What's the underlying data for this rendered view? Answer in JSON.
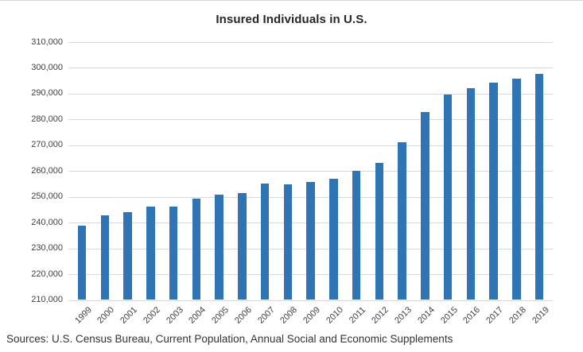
{
  "chart": {
    "title": "Insured Individuals in U.S.",
    "source_note": "Sources: U.S. Census Bureau, Current Population, Annual Social and Economic Supplements"
  },
  "colors": {
    "bar": "#2F75B5",
    "gridline": "#D9D9D9",
    "axis_text": "#404040",
    "title_text": "#262626",
    "source_text": "#333333",
    "top_border": "#D9D9D9"
  },
  "chart_data": {
    "type": "bar",
    "title": "Insured Individuals in U.S.",
    "categories": [
      "1999",
      "2000",
      "2001",
      "2002",
      "2003",
      "2004",
      "2005",
      "2006",
      "2007",
      "2008",
      "2009",
      "2010",
      "2011",
      "2012",
      "2013",
      "2014",
      "2015",
      "2016",
      "2017",
      "2018",
      "2019"
    ],
    "values": [
      238900,
      242900,
      244100,
      246200,
      246300,
      249300,
      250900,
      251600,
      255000,
      254700,
      255800,
      257000,
      260100,
      263200,
      271200,
      283000,
      289800,
      292000,
      294200,
      295700,
      297700
    ],
    "xlabel": "",
    "ylabel": "",
    "ylim": [
      210000,
      310000
    ],
    "ytick_step": 10000,
    "ytick_labels": [
      "210,000",
      "220,000",
      "230,000",
      "240,000",
      "250,000",
      "260,000",
      "270,000",
      "280,000",
      "290,000",
      "300,000",
      "310,000"
    ],
    "grid": true,
    "legend_position": "none"
  }
}
